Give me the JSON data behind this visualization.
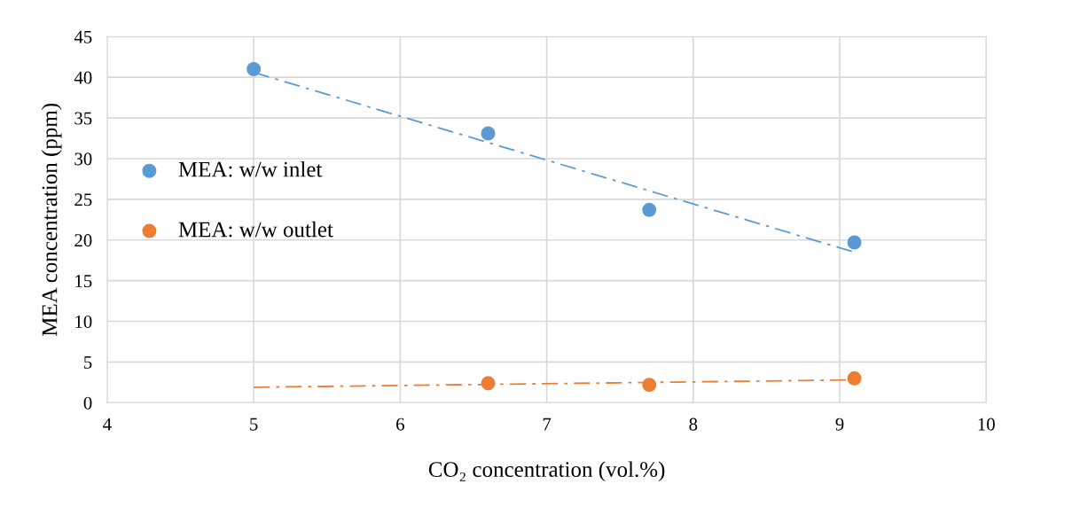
{
  "chart_data": {
    "type": "scatter",
    "xlabel": "CO₂ concentration (vol.%)",
    "ylabel": "MEA concentration (ppm)",
    "xlim": [
      4,
      10
    ],
    "xticks": [
      4,
      5,
      6,
      7,
      8,
      9,
      10
    ],
    "ylim": [
      0,
      45
    ],
    "yticks": [
      0,
      5,
      10,
      15,
      20,
      25,
      30,
      35,
      40,
      45
    ],
    "grid": true,
    "legend": "left",
    "marker": "circle",
    "series": [
      {
        "name": "MEA: w/w inlet",
        "color": "#5b9bd5",
        "x": [
          5,
          6.6,
          7.7,
          9.1
        ],
        "values": [
          41,
          33.1,
          23.7,
          19.7
        ]
      },
      {
        "name": "MEA: w/w outlet",
        "color": "#ed7d31",
        "x": [
          6.6,
          7.7,
          9.1
        ],
        "values": [
          2.4,
          2.2,
          3.0
        ]
      },
      {
        "type": "line",
        "color": "#5b9bd5",
        "line_style": "dashed",
        "marker": "none",
        "x": [
          5,
          9.1
        ],
        "values": [
          40.6,
          18.5
        ]
      },
      {
        "type": "line",
        "color": "#ed7d31",
        "line_style": "dashed",
        "marker": "none",
        "x": [
          5,
          9.1
        ],
        "values": [
          1.9,
          2.8
        ]
      }
    ]
  }
}
